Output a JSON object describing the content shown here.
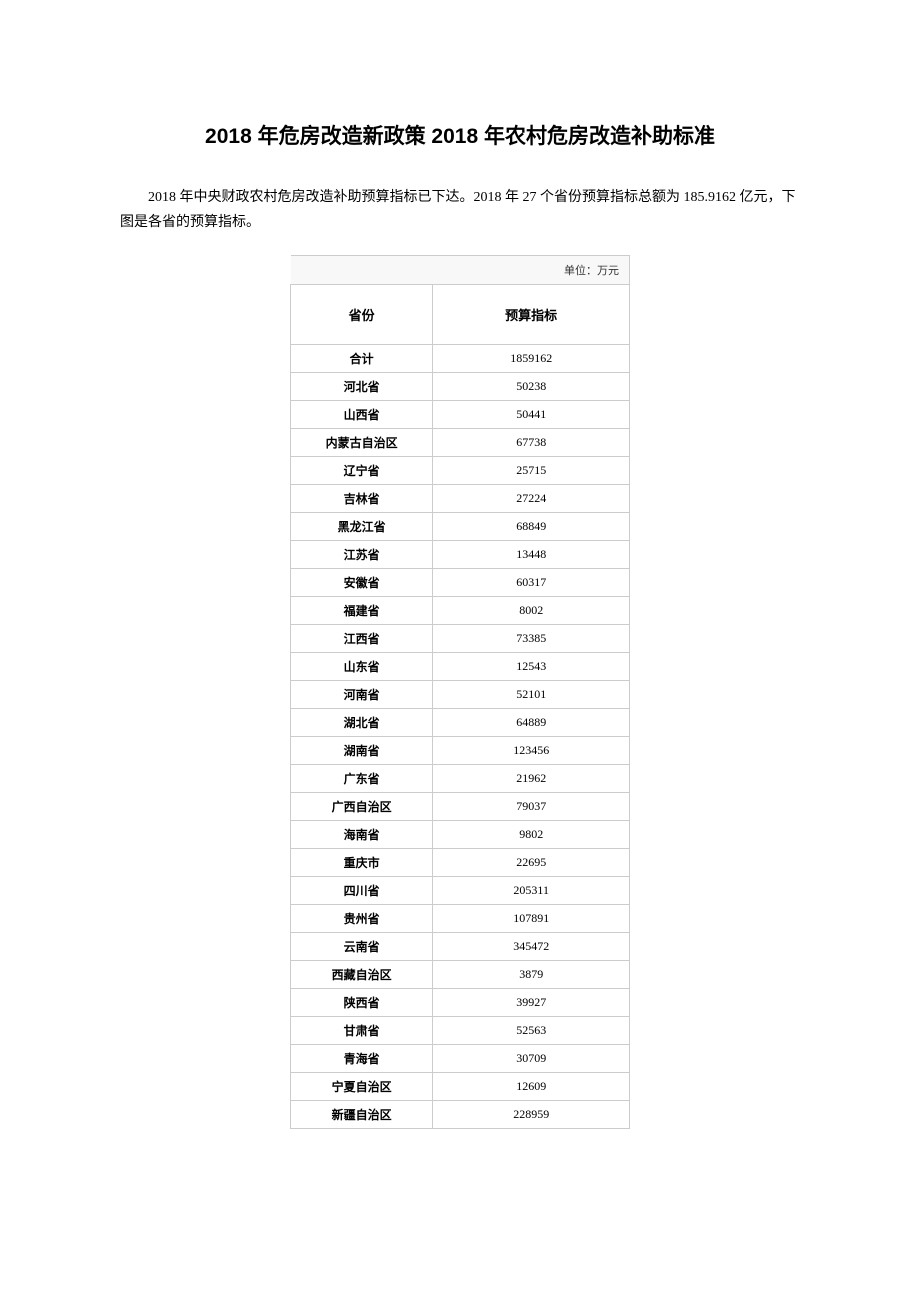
{
  "title": "2018 年危房改造新政策  2018 年农村危房改造补助标准",
  "intro": "2018 年中央财政农村危房改造补助预算指标已下达。2018 年 27 个省份预算指标总额为 185.9162 亿元，下图是各省的预算指标。",
  "table": {
    "unit": "单位：万元",
    "headers": {
      "province": "省份",
      "budget": "预算指标"
    },
    "total": {
      "label": "合计",
      "value": "1859162"
    },
    "rows": [
      {
        "province": "河北省",
        "value": "50238"
      },
      {
        "province": "山西省",
        "value": "50441"
      },
      {
        "province": "内蒙古自治区",
        "value": "67738"
      },
      {
        "province": "辽宁省",
        "value": "25715"
      },
      {
        "province": "吉林省",
        "value": "27224"
      },
      {
        "province": "黑龙江省",
        "value": "68849"
      },
      {
        "province": "江苏省",
        "value": "13448"
      },
      {
        "province": "安徽省",
        "value": "60317"
      },
      {
        "province": "福建省",
        "value": "8002"
      },
      {
        "province": "江西省",
        "value": "73385"
      },
      {
        "province": "山东省",
        "value": "12543"
      },
      {
        "province": "河南省",
        "value": "52101"
      },
      {
        "province": "湖北省",
        "value": "64889"
      },
      {
        "province": "湖南省",
        "value": "123456"
      },
      {
        "province": "广东省",
        "value": "21962"
      },
      {
        "province": "广西自治区",
        "value": "79037"
      },
      {
        "province": "海南省",
        "value": "9802"
      },
      {
        "province": "重庆市",
        "value": "22695"
      },
      {
        "province": "四川省",
        "value": "205311"
      },
      {
        "province": "贵州省",
        "value": "107891"
      },
      {
        "province": "云南省",
        "value": "345472"
      },
      {
        "province": "西藏自治区",
        "value": "3879"
      },
      {
        "province": "陕西省",
        "value": "39927"
      },
      {
        "province": "甘肃省",
        "value": "52563"
      },
      {
        "province": "青海省",
        "value": "30709"
      },
      {
        "province": "宁夏自治区",
        "value": "12609"
      },
      {
        "province": "新疆自治区",
        "value": "228959"
      }
    ]
  }
}
